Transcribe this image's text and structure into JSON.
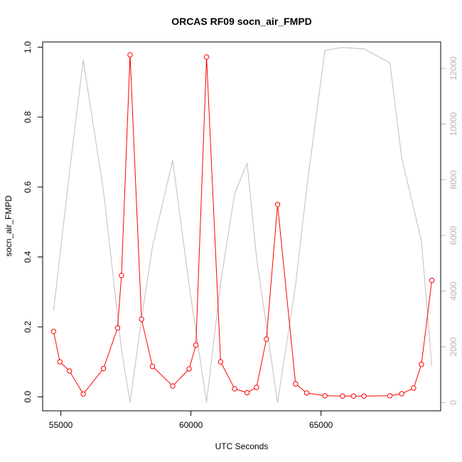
{
  "chart_data": {
    "type": "line",
    "title": "ORCAS RF09 socn_air_FMPD",
    "xlabel": "UTC Seconds",
    "ylabel": "socn_air_FMPD",
    "xlim": [
      54300,
      69600
    ],
    "ylim": [
      -0.04,
      1.015
    ],
    "y2lim": [
      -300,
      12950
    ],
    "x_ticks": [
      55000,
      60000,
      65000
    ],
    "y_ticks": [
      0.0,
      0.2,
      0.4,
      0.6,
      0.8,
      1.0
    ],
    "y_tick_labels": [
      "0.0",
      "0.2",
      "0.4",
      "0.6",
      "0.8",
      "1.0"
    ],
    "y2_ticks": [
      0,
      2000,
      4000,
      6000,
      8000,
      10000,
      12000
    ],
    "grid": false,
    "colors": {
      "primary": "#ff0000",
      "secondary": "#bebebe",
      "axis": "#000000",
      "secondary_axis": "#b5b5b5"
    },
    "series": [
      {
        "axis": "left",
        "style": "line+markers",
        "color": "#ff0000",
        "x": [
          54720,
          54960,
          55330,
          55860,
          56640,
          57180,
          57330,
          57660,
          58100,
          58520,
          59300,
          59930,
          60190,
          60600,
          61140,
          61680,
          62160,
          62520,
          62900,
          63330,
          64020,
          64450,
          65150,
          65830,
          66250,
          66650,
          67650,
          68100,
          68560,
          68860,
          69260
        ],
        "y": [
          0.187,
          0.1,
          0.074,
          0.008,
          0.081,
          0.197,
          0.347,
          0.978,
          0.222,
          0.087,
          0.031,
          0.08,
          0.148,
          0.972,
          0.1,
          0.023,
          0.012,
          0.027,
          0.165,
          0.55,
          0.037,
          0.011,
          0.003,
          0.002,
          0.002,
          0.002,
          0.003,
          0.009,
          0.025,
          0.093,
          0.333
        ]
      },
      {
        "axis": "right",
        "style": "line",
        "color": "#bebebe",
        "x": [
          54720,
          55360,
          55860,
          56640,
          57330,
          57660,
          58100,
          58520,
          59300,
          59930,
          60600,
          61140,
          61680,
          62160,
          62520,
          63330,
          64020,
          64450,
          65150,
          65830,
          66650,
          67650,
          68100,
          68860,
          69260
        ],
        "y": [
          3300,
          8500,
          12300,
          7600,
          1900,
          0,
          3000,
          5600,
          8700,
          4200,
          0,
          4300,
          7500,
          8600,
          5200,
          0,
          4200,
          7700,
          12650,
          12750,
          12700,
          12200,
          8800,
          5800,
          1300
        ]
      }
    ]
  }
}
